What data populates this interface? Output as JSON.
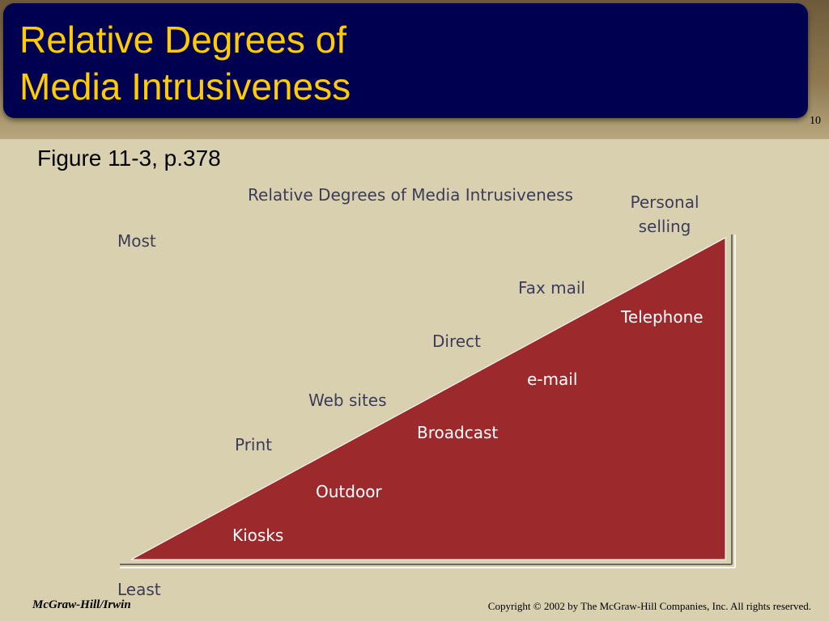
{
  "slide": {
    "title_line1": "Relative Degrees of",
    "title_line2": "Media Intrusiveness",
    "number": "10",
    "subtitle": "Figure 11-3, p.378"
  },
  "diagram": {
    "heading": "Relative Degrees of Media Intrusiveness",
    "most_label": "Most",
    "least_label": "Least",
    "outside_labels": {
      "personal_selling_line1": "Personal",
      "personal_selling_line2": "selling",
      "fax_mail": "Fax mail",
      "direct": "Direct",
      "web_sites": "Web sites",
      "print": "Print"
    },
    "inside_labels": {
      "telephone": "Telephone",
      "email": "e-mail",
      "broadcast": "Broadcast",
      "outdoor": "Outdoor",
      "kiosks": "Kiosks"
    }
  },
  "footer": {
    "publisher": "McGraw-Hill/Irwin",
    "copyright": "Copyright © 2002 by The McGraw-Hill Companies, Inc.  All rights reserved."
  },
  "colors": {
    "title_bg": "#000050",
    "title_text": "#ffcc00",
    "triangle_fill": "#9c2a2c",
    "outside_text": "#3c3c5a",
    "inside_text": "#ffffff"
  }
}
